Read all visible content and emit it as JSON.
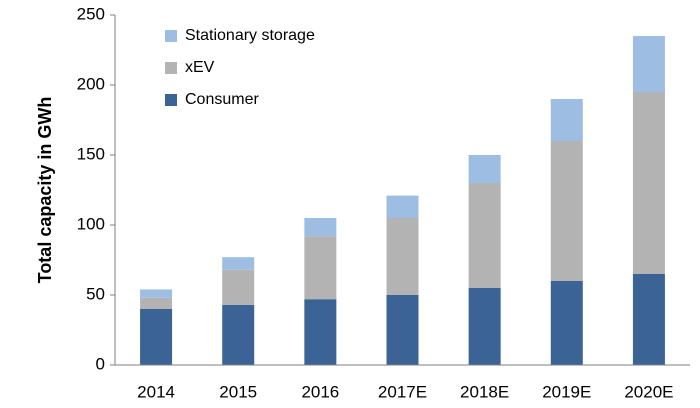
{
  "chart_data": {
    "type": "stacked_bar",
    "y_label": "Total capacity in GWh",
    "categories": [
      "2014",
      "2015",
      "2016",
      "2017E",
      "2018E",
      "2019E",
      "2020E"
    ],
    "series": [
      {
        "name": "Consumer",
        "color": "#3b6396",
        "values": [
          40,
          43,
          47,
          50,
          55,
          60,
          65
        ]
      },
      {
        "name": "xEV",
        "color": "#b3b3b3",
        "values": [
          8,
          25,
          45,
          55,
          75,
          100,
          130
        ]
      },
      {
        "name": "Stationary storage",
        "color": "#9dbde3",
        "values": [
          6,
          9,
          13,
          16,
          20,
          30,
          40
        ]
      }
    ],
    "ylim": [
      0,
      250
    ],
    "yticks": [
      0,
      50,
      100,
      150,
      200,
      250
    ],
    "grid": false,
    "legend": "upper-left"
  }
}
